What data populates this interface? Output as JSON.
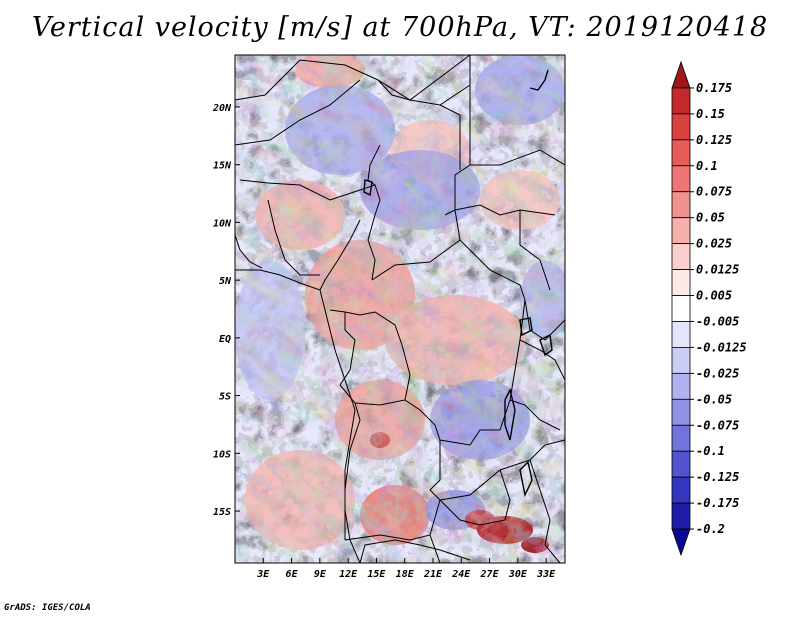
{
  "title": "Vertical velocity [m/s] at 700hPa, VT: 2019120418",
  "credit": "GrADS: IGES/COLA",
  "map": {
    "lon_labels": [
      "3E",
      "6E",
      "9E",
      "12E",
      "15E",
      "18E",
      "21E",
      "24E",
      "27E",
      "30E",
      "33E"
    ],
    "lat_labels": [
      "20N",
      "15N",
      "10N",
      "5N",
      "EQ",
      "5S",
      "10S",
      "15S"
    ],
    "lon_values": [
      3,
      6,
      9,
      12,
      15,
      18,
      21,
      24,
      27,
      30,
      33
    ],
    "lat_values": [
      20,
      15,
      10,
      5,
      0,
      -5,
      -10,
      -15
    ],
    "lon_range": [
      0,
      35
    ],
    "lat_range": [
      -19.5,
      24.5
    ]
  },
  "colorbar": {
    "labels": [
      "0.175",
      "0.15",
      "0.125",
      "0.1",
      "0.075",
      "0.05",
      "0.025",
      "0.0125",
      "0.005",
      "-0.005",
      "-0.0125",
      "-0.025",
      "-0.05",
      "-0.075",
      "-0.1",
      "-0.125",
      "-0.175",
      "-0.2"
    ],
    "colors": [
      "#a0161a",
      "#c42a2a",
      "#d8423f",
      "#e65c58",
      "#ec7673",
      "#f09290",
      "#f5b0ac",
      "#f9cfcc",
      "#fde9e8",
      "#ffffff",
      "#e4e4fb",
      "#cccdf6",
      "#b0b2f0",
      "#9193e6",
      "#7174dc",
      "#5254cf",
      "#3536c0",
      "#1e1eaa",
      "#0a0a90"
    ]
  },
  "colors": {
    "positive": "#d04040",
    "negative": "#6a6ae0",
    "border": "#000000"
  }
}
